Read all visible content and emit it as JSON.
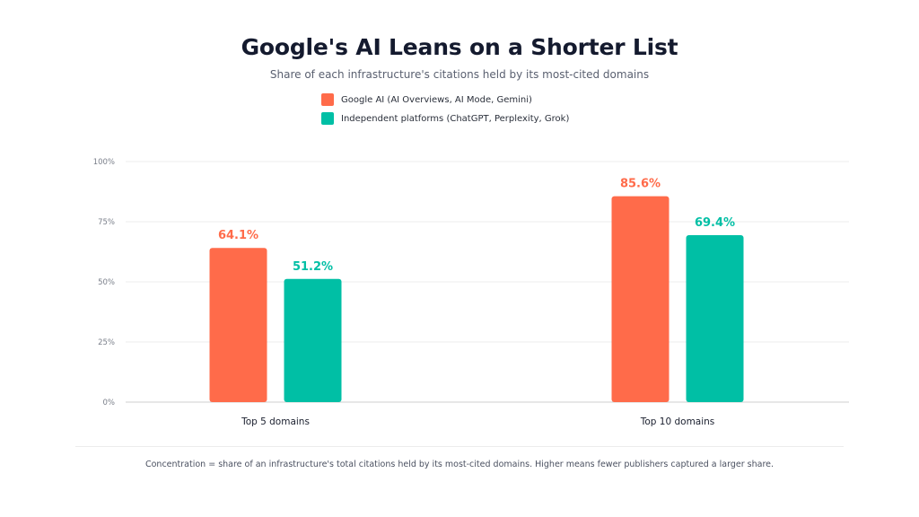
{
  "chart_data": {
    "type": "bar",
    "title": "Google's AI Leans on a Shorter List",
    "subtitle": "Share of each infrastructure's citations held by its most-cited domains",
    "categories": [
      "Top 5 domains",
      "Top 10 domains"
    ],
    "series": [
      {
        "name": "Google AI (AI Overviews, AI Mode, Gemini)",
        "values": [
          64.1,
          85.6
        ],
        "labels": [
          "64.1%",
          "85.6%"
        ],
        "color": "#ff6b4a"
      },
      {
        "name": "Independent platforms (ChatGPT, Perplexity, Grok)",
        "values": [
          51.2,
          69.4
        ],
        "labels": [
          "51.2%",
          "69.4%"
        ],
        "color": "#00bfa5"
      }
    ],
    "yticks": [
      {
        "value": 0,
        "label": "0%"
      },
      {
        "value": 25,
        "label": "25%"
      },
      {
        "value": 50,
        "label": "50%"
      },
      {
        "value": 75,
        "label": "75%"
      },
      {
        "value": 100,
        "label": "100%"
      }
    ],
    "ylim": [
      0,
      100
    ],
    "xlabel": "",
    "ylabel": "",
    "grid": true,
    "legend_position": "top-center"
  },
  "footnote": "Concentration = share of an infrastructure's total citations held by its most-cited domains. Higher means fewer publishers captured a larger share."
}
